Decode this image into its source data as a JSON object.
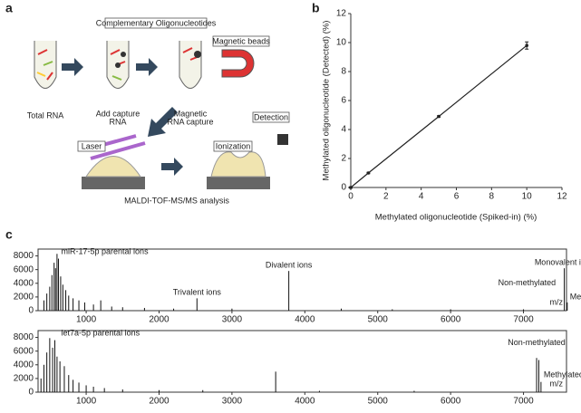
{
  "panel_labels": [
    "a",
    "b",
    "c"
  ],
  "diagram": {
    "complementary": "Complementary Oligonucleotides",
    "beads": "Magnetic beads",
    "step1": [
      "Total RNA"
    ],
    "step2": [
      "Add capture",
      "RNA"
    ],
    "step3": [
      "Magnetic",
      "RNA capture"
    ],
    "laser": "Laser",
    "ionization": "Ionization",
    "detection": "Detection",
    "analysis": "MALDI-TOF-MS/MS analysis"
  },
  "chart_data": [
    {
      "type": "line",
      "x_label": "Methylated oligonucleotide (Spiked-in) (%)",
      "y_label": "Methylated oligonucleotide (Detected) (%)",
      "x": [
        0,
        1,
        5,
        10
      ],
      "values": [
        0,
        1,
        4.9,
        9.8
      ],
      "errors": [
        0.05,
        0.05,
        0.05,
        0.25
      ],
      "color": "#222",
      "xlim": [
        0,
        12
      ],
      "xticks": [
        0,
        2,
        4,
        6,
        8,
        10,
        12
      ],
      "ylim": [
        0,
        12
      ],
      "yticks": [
        0,
        2,
        4,
        6,
        8,
        10,
        12
      ]
    },
    {
      "type": "spectrum",
      "x_label": "m/z",
      "x": [
        420,
        460,
        500,
        530,
        560,
        580,
        600,
        620,
        650,
        680,
        720,
        760,
        820,
        900,
        980,
        1100,
        1200,
        1350,
        1500,
        1800,
        2200,
        2520,
        3000,
        3780,
        4500,
        5200,
        6000,
        7000,
        7560,
        7600
      ],
      "values": [
        1500,
        2500,
        3500,
        5200,
        7000,
        6200,
        8300,
        7600,
        5000,
        3800,
        3000,
        2200,
        1800,
        1500,
        1200,
        900,
        1500,
        600,
        500,
        400,
        300,
        1800,
        300,
        5800,
        300,
        200,
        200,
        200,
        6200,
        1200
      ],
      "color": "#111",
      "xlim": [
        340,
        7590
      ],
      "xticks": [
        1000,
        2000,
        3000,
        4000,
        5000,
        6000,
        7000
      ],
      "ylim": [
        0,
        9000
      ],
      "yticks": [
        0,
        2000,
        4000,
        6000,
        8000
      ],
      "annotations": [
        "miR-17-5p parental ions",
        "Trivalent ions",
        "Divalent ions",
        "Monovalent ions",
        "Non-methylated",
        "Methylated"
      ]
    },
    {
      "type": "spectrum",
      "x_label": "m/z",
      "x": [
        380,
        420,
        460,
        500,
        540,
        570,
        600,
        640,
        700,
        760,
        820,
        900,
        1000,
        1100,
        1250,
        1500,
        2000,
        2600,
        3600,
        4200,
        5500,
        7180,
        7210,
        7240
      ],
      "values": [
        2000,
        4000,
        5800,
        7900,
        6500,
        7600,
        5200,
        4500,
        3800,
        2500,
        1800,
        1400,
        1000,
        800,
        600,
        400,
        300,
        300,
        3000,
        200,
        200,
        5000,
        4700,
        1500
      ],
      "color": "#111",
      "xlim": [
        340,
        7590
      ],
      "xticks": [
        1000,
        2000,
        3000,
        4000,
        5000,
        6000,
        7000
      ],
      "ylim": [
        0,
        9000
      ],
      "yticks": [
        0,
        2000,
        4000,
        6000,
        8000
      ],
      "annotations": [
        "let7a-5p parental ions",
        "Non-methylated",
        "Methylated"
      ]
    }
  ]
}
